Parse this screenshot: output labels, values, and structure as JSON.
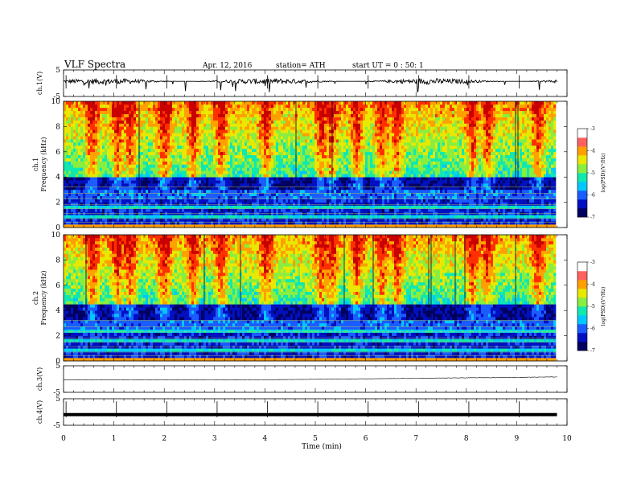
{
  "header": {
    "title": "VLF Spectra",
    "date": "Apr. 12, 2016",
    "station": "station= ATH",
    "start": "start  UT =   0 : 50: 1"
  },
  "colors": {
    "background": "#ffffff",
    "trace": "#000000",
    "colormap": [
      "#000060",
      "#0010c0",
      "#1a5cff",
      "#00c8ff",
      "#10e8b0",
      "#88ee40",
      "#e8e800",
      "#ffa000",
      "#ff3000",
      "#c80000"
    ],
    "colorbar_top": [
      "#ff6060",
      "#ffffff"
    ]
  },
  "chart_data": [
    {
      "type": "line",
      "panel": "ch1-waveform",
      "ylabel": "ch.1(V)",
      "ylim": [
        -5,
        5
      ],
      "yticks": [
        "5",
        "-5"
      ],
      "x_unit": "min",
      "xlim": [
        0,
        10
      ],
      "data_end": 9.8,
      "series": [
        {
          "y_baseline": 0.7,
          "y_noise": 1.1,
          "spikes_down_to": -3.5
        }
      ]
    },
    {
      "type": "heatmap",
      "panel": "ch1-spectrogram",
      "ylabel": "ch.1\nFrequency (kHz)",
      "ylim": [
        0,
        10
      ],
      "yticks": [
        "0",
        "2",
        "4",
        "6",
        "8",
        "10"
      ],
      "xlim": [
        0,
        10
      ],
      "data_end": 9.8,
      "zlabel": "log(PSD)(V²/Hz)",
      "zlim": [
        -7,
        -3
      ],
      "zticks": [
        "-7",
        "-6",
        "-5",
        "-4",
        "-3"
      ],
      "band_edges_khz": [
        4.0,
        3.0,
        2.2
      ],
      "hot_columns_min": [
        0.55,
        1.05,
        1.3,
        1.95,
        2.0,
        2.55,
        3.1,
        4.0,
        5.1,
        5.3,
        5.8,
        6.3,
        6.6,
        8.1,
        8.4,
        9.4
      ]
    },
    {
      "type": "heatmap",
      "panel": "ch2-spectrogram",
      "ylabel": "ch.2\nFrequency (kHz)",
      "ylim": [
        0,
        10
      ],
      "yticks": [
        "0",
        "2",
        "4",
        "6",
        "8",
        "10"
      ],
      "xlim": [
        0,
        10
      ],
      "data_end": 9.8,
      "zlabel": "log(PSD)(V²/Hz)",
      "zlim": [
        -7,
        -3
      ],
      "zticks": [
        "-7",
        "-6",
        "-5",
        "-4",
        "-3"
      ],
      "band_edges_khz": [
        4.5,
        3.3,
        2.5
      ],
      "hot_columns_min": [
        0.55,
        1.05,
        1.3,
        1.95,
        2.0,
        2.55,
        3.1,
        4.0,
        5.1,
        5.3,
        5.8,
        6.3,
        6.6,
        8.1,
        8.4,
        9.4
      ]
    },
    {
      "type": "line",
      "panel": "ch3-waveform",
      "ylabel": "ch.3(V)",
      "ylim": [
        -5,
        5
      ],
      "yticks": [
        "5",
        "-5"
      ],
      "xlim": [
        0,
        10
      ],
      "data_end": 9.8,
      "series": [
        {
          "y_start": -0.3,
          "y_end": 0.8
        }
      ]
    },
    {
      "type": "line",
      "panel": "ch4-waveform",
      "ylabel": "ch.4(V)",
      "ylim": [
        -5,
        5
      ],
      "yticks": [
        "5",
        "-5"
      ],
      "xlim": [
        0,
        10
      ],
      "data_end": 9.8,
      "series": [
        {
          "y_level": -1.0
        }
      ]
    }
  ],
  "xaxis": {
    "label": "Time  (min)",
    "ticks": [
      "0",
      "1",
      "2",
      "3",
      "4",
      "5",
      "6",
      "7",
      "8",
      "9",
      "10"
    ]
  }
}
